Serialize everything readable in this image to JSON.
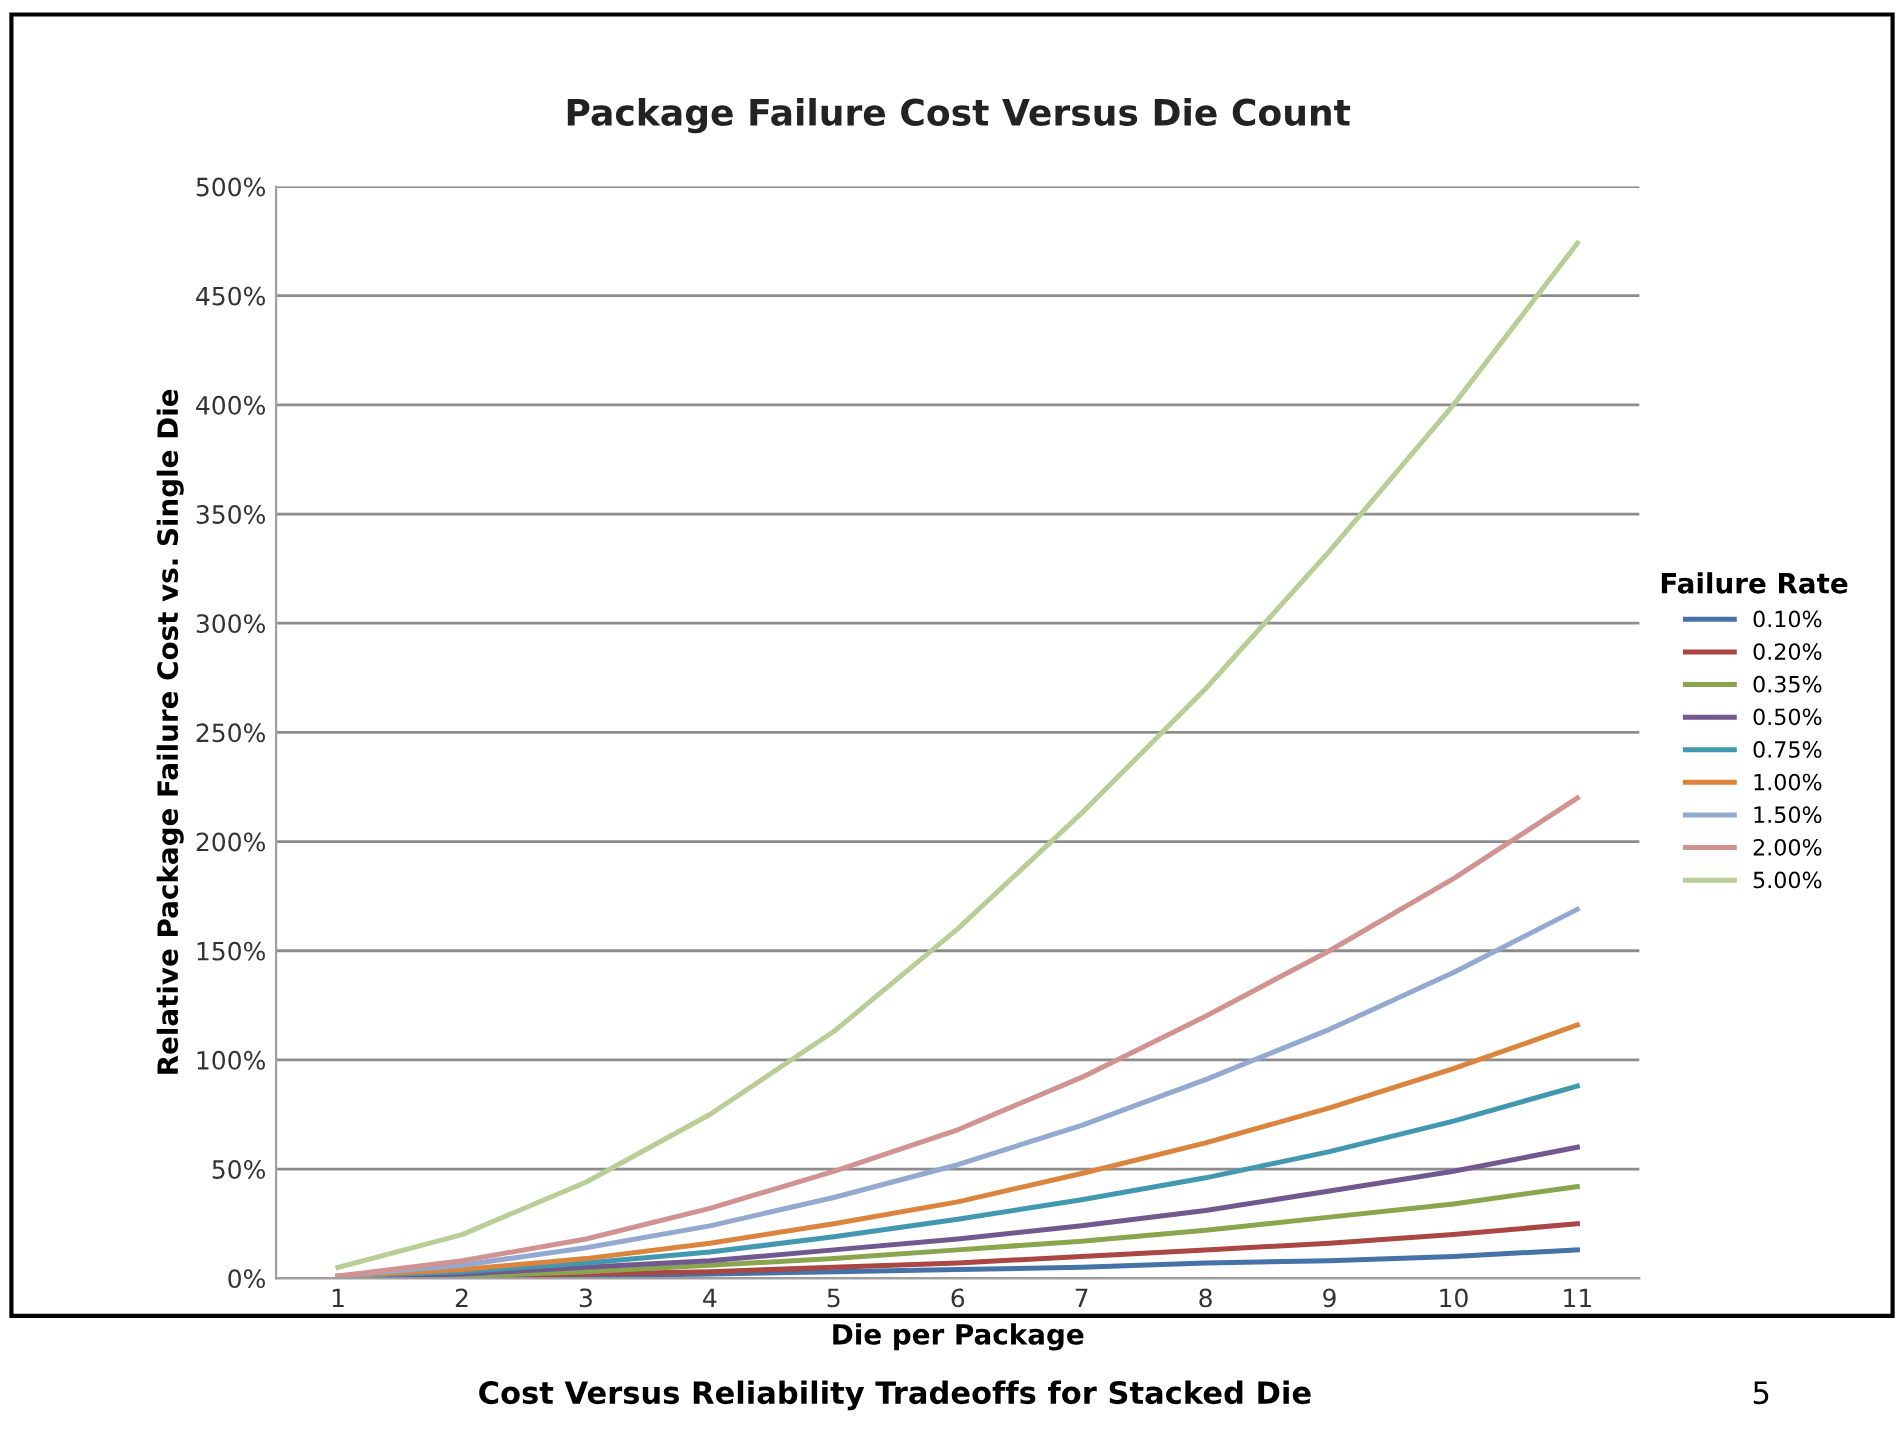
{
  "chart_data": {
    "type": "line",
    "title": "Package Failure Cost Versus Die Count",
    "xlabel": "Die per Package",
    "ylabel": "Relative Package Failure Cost vs. Single Die",
    "legend_title": "Failure Rate",
    "categories": [
      "1",
      "2",
      "3",
      "4",
      "5",
      "6",
      "7",
      "8",
      "9",
      "10",
      "11"
    ],
    "series": [
      {
        "name": "0.10%",
        "color": "#4572a7",
        "values": [
          0,
          0,
          1,
          2,
          3,
          4,
          5,
          7,
          8,
          10,
          13
        ]
      },
      {
        "name": "0.20%",
        "color": "#aa4643",
        "values": [
          0,
          1,
          2,
          3,
          5,
          7,
          10,
          13,
          16,
          20,
          25
        ]
      },
      {
        "name": "0.35%",
        "color": "#89a54e",
        "values": [
          0,
          1,
          3,
          6,
          9,
          13,
          17,
          22,
          28,
          34,
          42
        ]
      },
      {
        "name": "0.50%",
        "color": "#71588f",
        "values": [
          0,
          2,
          5,
          8,
          13,
          18,
          24,
          31,
          40,
          49,
          60
        ]
      },
      {
        "name": "0.75%",
        "color": "#4198af",
        "values": [
          1,
          3,
          7,
          12,
          19,
          27,
          36,
          46,
          58,
          72,
          88
        ]
      },
      {
        "name": "1.00%",
        "color": "#db843d",
        "values": [
          1,
          4,
          9,
          16,
          25,
          35,
          48,
          62,
          78,
          96,
          116
        ]
      },
      {
        "name": "1.50%",
        "color": "#93a9cf",
        "values": [
          1,
          6,
          14,
          24,
          37,
          52,
          70,
          91,
          114,
          140,
          169
        ]
      },
      {
        "name": "2.00%",
        "color": "#d19392",
        "values": [
          1,
          8,
          18,
          32,
          49,
          68,
          92,
          120,
          150,
          183,
          220
        ]
      },
      {
        "name": "5.00%",
        "color": "#b9cd96",
        "values": [
          5,
          20,
          44,
          75,
          113,
          160,
          213,
          270,
          333,
          400,
          474
        ]
      }
    ],
    "ylim": [
      0,
      500
    ],
    "yticks": [
      {
        "value": 0,
        "label": "0%"
      },
      {
        "value": 50,
        "label": "50%"
      },
      {
        "value": 100,
        "label": "100%"
      },
      {
        "value": 150,
        "label": "150%"
      },
      {
        "value": 200,
        "label": "200%"
      },
      {
        "value": 250,
        "label": "250%"
      },
      {
        "value": 300,
        "label": "300%"
      },
      {
        "value": 350,
        "label": "350%"
      },
      {
        "value": 400,
        "label": "400%"
      },
      {
        "value": 450,
        "label": "450%"
      },
      {
        "value": 500,
        "label": "500%"
      }
    ],
    "grid": "y",
    "legend": "right",
    "marker": "none",
    "line_style": "solid",
    "annotations": [
      "Cost Versus Reliability Tradeoffs for Stacked Die",
      "5"
    ]
  }
}
